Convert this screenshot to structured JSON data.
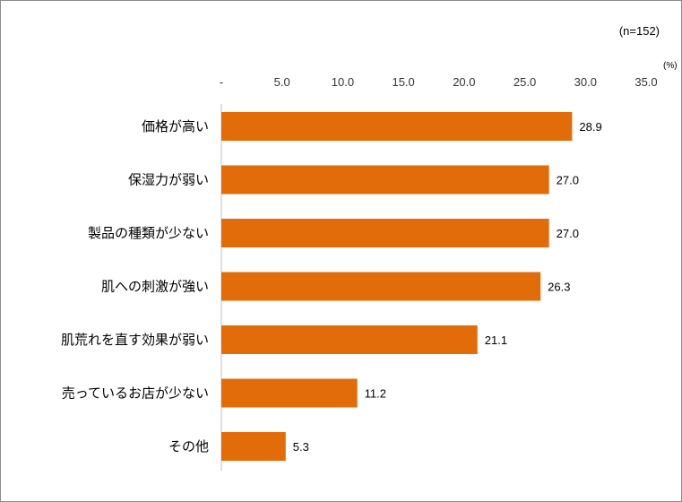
{
  "chart_data": {
    "type": "bar",
    "orientation": "horizontal",
    "note": "(n=152)",
    "unit": "(%)",
    "categories": [
      "価格が高い",
      "保湿力が弱い",
      "製品の種類が少ない",
      "肌への刺激が強い",
      "肌荒れを直す効果が弱い",
      "売っているお店が少ない",
      "その他"
    ],
    "values": [
      28.9,
      27.0,
      27.0,
      26.3,
      21.1,
      11.2,
      5.3
    ],
    "data_labels": [
      "28.9",
      "27.0",
      "27.0",
      "26.3",
      "21.1",
      "11.2",
      "5.3"
    ],
    "xlim": [
      0,
      35
    ],
    "ticks": [
      0,
      5,
      10,
      15,
      20,
      25,
      30,
      35
    ],
    "tick_labels": [
      "-",
      "5.0",
      "10.0",
      "15.0",
      "20.0",
      "25.0",
      "30.0",
      "35.0"
    ],
    "axis_position": "top",
    "grid": false,
    "legend": "none",
    "bar_color": "#E36C0A"
  }
}
